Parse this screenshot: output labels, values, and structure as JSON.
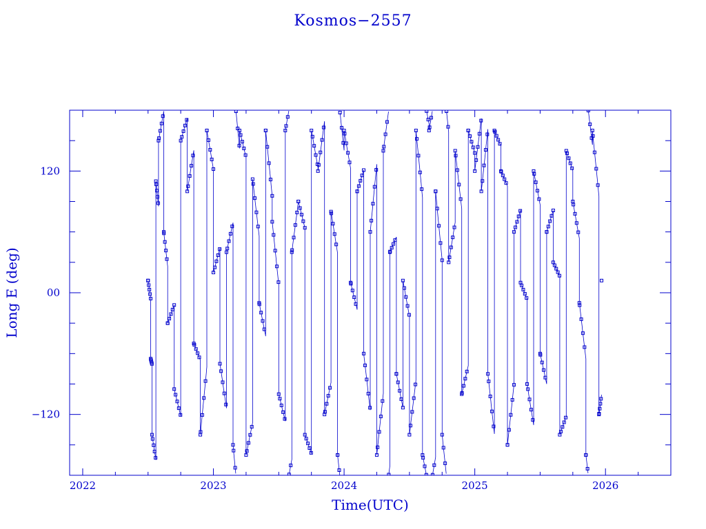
{
  "chart_data": {
    "type": "line",
    "title": "Kosmos−2557",
    "xlabel": "Time(UTC)",
    "ylabel": "Long E (deg)",
    "xlim": [
      2021.9,
      2026.5
    ],
    "ylim": [
      -180,
      180
    ],
    "x_ticks": [
      {
        "value": 2022,
        "label": "2022"
      },
      {
        "value": 2023,
        "label": "2023"
      },
      {
        "value": 2024,
        "label": "2024"
      },
      {
        "value": 2025,
        "label": "2025"
      },
      {
        "value": 2026,
        "label": "2026"
      }
    ],
    "y_ticks": [
      {
        "value": 120,
        "label": "120"
      },
      {
        "value": 0,
        "label": "00"
      },
      {
        "value": -120,
        "label": "−120"
      }
    ],
    "x_minor_step": 0.25,
    "y_minor_step": 30,
    "grid": false,
    "line_color": "#0000cc",
    "marker": "square",
    "series": [
      {
        "x_range": [
          2022.5,
          2025.97
        ],
        "drift_deg_per_day": 5,
        "points": [
          [
            2022.5,
            12
          ],
          [
            2022.52,
            -65
          ],
          [
            2022.53,
            -140
          ],
          [
            2022.56,
            110
          ],
          [
            2022.58,
            150
          ],
          [
            2022.62,
            60
          ],
          [
            2022.65,
            -30
          ],
          [
            2022.7,
            -95
          ],
          [
            2022.75,
            150
          ],
          [
            2022.8,
            100
          ],
          [
            2022.85,
            -50
          ],
          [
            2022.9,
            -140
          ],
          [
            2022.95,
            160
          ],
          [
            2023.0,
            20
          ],
          [
            2023.05,
            -70
          ],
          [
            2023.1,
            40
          ],
          [
            2023.15,
            -150
          ],
          [
            2023.2,
            160
          ],
          [
            2023.25,
            -160
          ],
          [
            2023.3,
            112
          ],
          [
            2023.35,
            -10
          ],
          [
            2023.4,
            160
          ],
          [
            2023.45,
            70
          ],
          [
            2023.5,
            -100
          ],
          [
            2023.55,
            160
          ],
          [
            2023.6,
            40
          ],
          [
            2023.65,
            90
          ],
          [
            2023.7,
            -140
          ],
          [
            2023.75,
            160
          ],
          [
            2023.8,
            120
          ],
          [
            2023.85,
            -120
          ],
          [
            2023.9,
            80
          ],
          [
            2023.95,
            -160
          ],
          [
            2024.0,
            160
          ],
          [
            2024.05,
            10
          ],
          [
            2024.1,
            100
          ],
          [
            2024.15,
            -60
          ],
          [
            2024.2,
            60
          ],
          [
            2024.25,
            -160
          ],
          [
            2024.3,
            140
          ],
          [
            2024.35,
            40
          ],
          [
            2024.4,
            -80
          ],
          [
            2024.45,
            12
          ],
          [
            2024.5,
            -140
          ],
          [
            2024.55,
            160
          ],
          [
            2024.6,
            -160
          ],
          [
            2024.65,
            160
          ],
          [
            2024.7,
            100
          ],
          [
            2024.75,
            -140
          ],
          [
            2024.8,
            30
          ],
          [
            2024.85,
            140
          ],
          [
            2024.9,
            -100
          ],
          [
            2024.95,
            160
          ],
          [
            2025.0,
            120
          ],
          [
            2025.05,
            100
          ],
          [
            2025.1,
            -80
          ],
          [
            2025.15,
            160
          ],
          [
            2025.2,
            120
          ],
          [
            2025.25,
            -150
          ],
          [
            2025.3,
            60
          ],
          [
            2025.35,
            10
          ],
          [
            2025.4,
            -90
          ],
          [
            2025.45,
            120
          ],
          [
            2025.5,
            -60
          ],
          [
            2025.55,
            60
          ],
          [
            2025.6,
            30
          ],
          [
            2025.65,
            -140
          ],
          [
            2025.7,
            140
          ],
          [
            2025.75,
            90
          ],
          [
            2025.8,
            -10
          ],
          [
            2025.85,
            -160
          ],
          [
            2025.9,
            160
          ],
          [
            2025.95,
            -120
          ],
          [
            2025.97,
            12
          ]
        ]
      }
    ]
  }
}
